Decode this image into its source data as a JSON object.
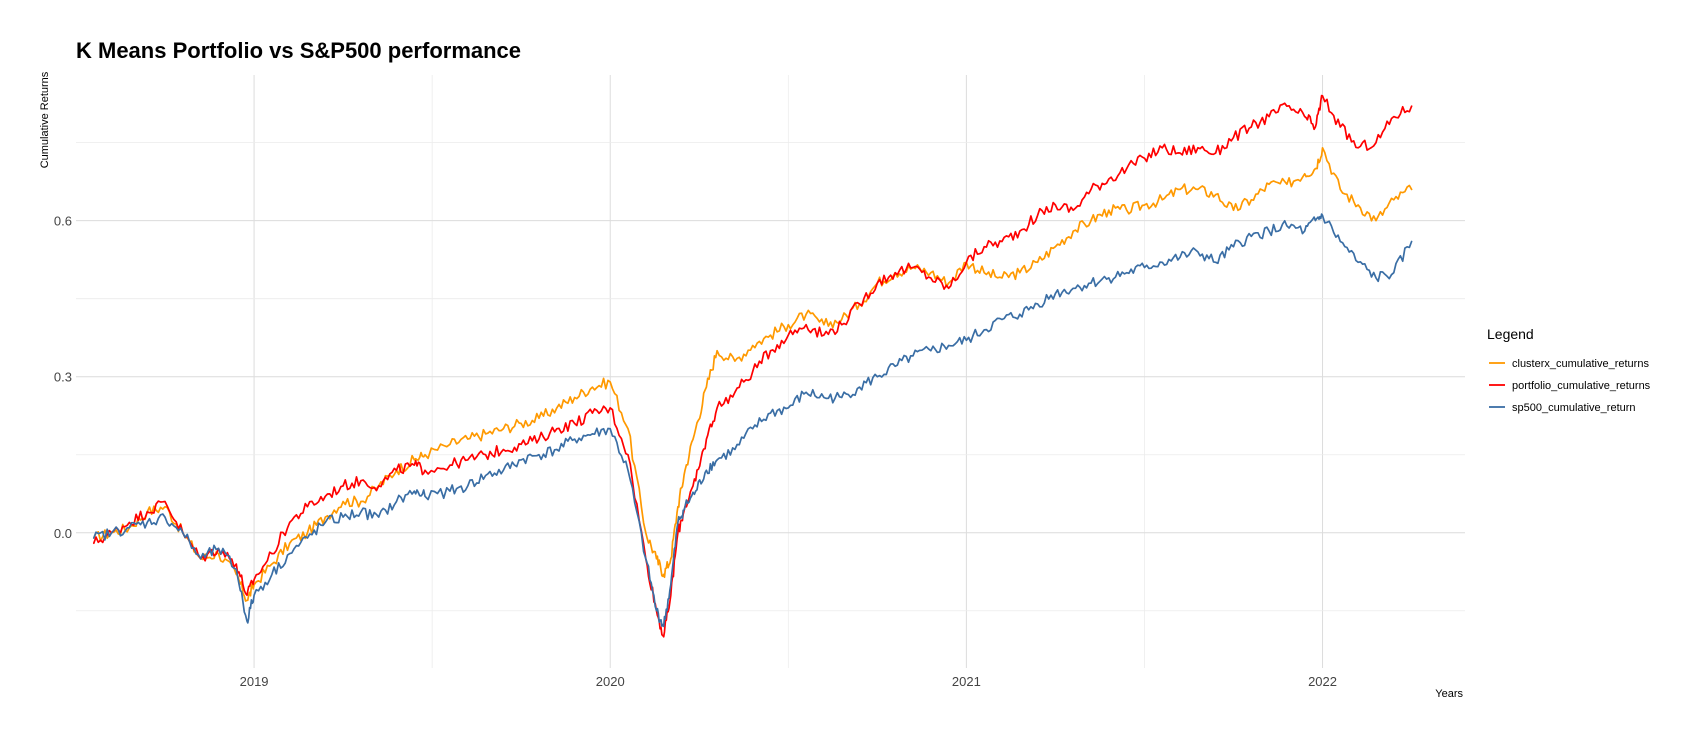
{
  "chart_data": {
    "type": "line",
    "title": "K Means Portfolio vs S&P500 performance",
    "xlabel": "Years",
    "ylabel": "Cumulative Returns",
    "x_tick_labels": [
      "2019",
      "2020",
      "2021",
      "2022"
    ],
    "x_tick_values": [
      2019.0,
      2020.0,
      2021.0,
      2022.0
    ],
    "y_tick_labels": [
      "0.0",
      "0.3",
      "0.6"
    ],
    "y_tick_values": [
      0.0,
      0.3,
      0.6
    ],
    "xlim": [
      2018.5,
      2022.4
    ],
    "ylim": [
      -0.26,
      0.88
    ],
    "grid": true,
    "legend": {
      "title": "Legend",
      "position": "right"
    },
    "x": [
      2018.55,
      2018.6,
      2018.65,
      2018.7,
      2018.75,
      2018.8,
      2018.85,
      2018.9,
      2018.95,
      2018.98,
      2019.0,
      2019.05,
      2019.1,
      2019.15,
      2019.2,
      2019.25,
      2019.3,
      2019.35,
      2019.4,
      2019.45,
      2019.48,
      2019.55,
      2019.6,
      2019.65,
      2019.7,
      2019.75,
      2019.8,
      2019.85,
      2019.9,
      2019.95,
      2020.0,
      2020.05,
      2020.1,
      2020.13,
      2020.15,
      2020.17,
      2020.19,
      2020.21,
      2020.24,
      2020.27,
      2020.3,
      2020.35,
      2020.4,
      2020.45,
      2020.5,
      2020.55,
      2020.6,
      2020.65,
      2020.7,
      2020.75,
      2020.8,
      2020.85,
      2020.9,
      2020.95,
      2021.0,
      2021.05,
      2021.1,
      2021.15,
      2021.2,
      2021.25,
      2021.3,
      2021.35,
      2021.4,
      2021.45,
      2021.5,
      2021.55,
      2021.6,
      2021.65,
      2021.7,
      2021.75,
      2021.8,
      2021.85,
      2021.9,
      2021.95,
      2021.98,
      2022.0,
      2022.05,
      2022.1,
      2022.15,
      2022.2,
      2022.25
    ],
    "series": [
      {
        "name": "clusterx_cumulative_returns",
        "color": "#ff9900",
        "values": [
          -0.01,
          0.0,
          0.01,
          0.04,
          0.05,
          0.0,
          -0.05,
          -0.04,
          -0.08,
          -0.13,
          -0.1,
          -0.06,
          -0.02,
          0.0,
          0.03,
          0.06,
          0.06,
          0.09,
          0.12,
          0.14,
          0.15,
          0.17,
          0.18,
          0.19,
          0.2,
          0.21,
          0.22,
          0.24,
          0.26,
          0.28,
          0.29,
          0.2,
          0.0,
          -0.05,
          -0.08,
          -0.05,
          0.05,
          0.12,
          0.2,
          0.28,
          0.35,
          0.33,
          0.36,
          0.38,
          0.4,
          0.42,
          0.4,
          0.41,
          0.44,
          0.48,
          0.5,
          0.51,
          0.5,
          0.48,
          0.52,
          0.5,
          0.49,
          0.5,
          0.52,
          0.55,
          0.58,
          0.6,
          0.62,
          0.62,
          0.63,
          0.64,
          0.66,
          0.66,
          0.65,
          0.62,
          0.64,
          0.67,
          0.67,
          0.69,
          0.7,
          0.74,
          0.66,
          0.63,
          0.6,
          0.64,
          0.66
        ]
      },
      {
        "name": "portfolio_cumulative_returns",
        "color": "#ff0000",
        "values": [
          -0.02,
          0.0,
          0.02,
          0.04,
          0.06,
          0.0,
          -0.05,
          -0.03,
          -0.06,
          -0.12,
          -0.09,
          -0.04,
          0.02,
          0.05,
          0.07,
          0.09,
          0.1,
          0.09,
          0.12,
          0.13,
          0.12,
          0.13,
          0.14,
          0.15,
          0.16,
          0.17,
          0.18,
          0.2,
          0.21,
          0.23,
          0.24,
          0.15,
          -0.05,
          -0.15,
          -0.2,
          -0.12,
          0.0,
          0.05,
          0.1,
          0.18,
          0.24,
          0.27,
          0.31,
          0.35,
          0.38,
          0.4,
          0.38,
          0.4,
          0.44,
          0.48,
          0.5,
          0.51,
          0.49,
          0.47,
          0.52,
          0.55,
          0.56,
          0.58,
          0.61,
          0.63,
          0.62,
          0.66,
          0.68,
          0.7,
          0.72,
          0.74,
          0.73,
          0.74,
          0.73,
          0.76,
          0.78,
          0.8,
          0.82,
          0.8,
          0.78,
          0.84,
          0.78,
          0.74,
          0.75,
          0.8,
          0.82
        ]
      },
      {
        "name": "sp500_cumulative_return",
        "color": "#3a6ea5",
        "values": [
          -0.01,
          0.0,
          0.01,
          0.02,
          0.03,
          0.0,
          -0.05,
          -0.03,
          -0.07,
          -0.17,
          -0.12,
          -0.08,
          -0.04,
          -0.01,
          0.02,
          0.03,
          0.04,
          0.03,
          0.06,
          0.08,
          0.07,
          0.08,
          0.09,
          0.11,
          0.12,
          0.14,
          0.15,
          0.16,
          0.18,
          0.19,
          0.2,
          0.12,
          -0.05,
          -0.15,
          -0.18,
          -0.1,
          0.02,
          0.05,
          0.08,
          0.12,
          0.14,
          0.16,
          0.2,
          0.23,
          0.24,
          0.27,
          0.26,
          0.26,
          0.28,
          0.3,
          0.32,
          0.34,
          0.35,
          0.36,
          0.37,
          0.39,
          0.41,
          0.42,
          0.44,
          0.46,
          0.47,
          0.48,
          0.49,
          0.5,
          0.51,
          0.52,
          0.53,
          0.54,
          0.52,
          0.55,
          0.57,
          0.58,
          0.59,
          0.58,
          0.6,
          0.61,
          0.56,
          0.52,
          0.49,
          0.5,
          0.56
        ]
      }
    ]
  }
}
